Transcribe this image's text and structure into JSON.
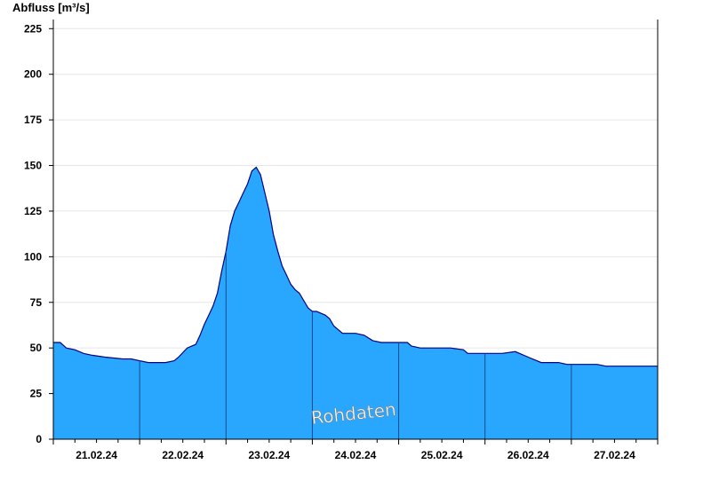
{
  "chart_data": {
    "type": "area",
    "ylabel": "Abfluss [m³/s]",
    "ylim": [
      0,
      230
    ],
    "yticks": [
      0,
      25,
      50,
      75,
      100,
      125,
      150,
      175,
      200,
      225
    ],
    "xlabels": [
      "21.02.24",
      "22.02.24",
      "23.02.24",
      "24.02.24",
      "25.02.24",
      "26.02.24",
      "27.02.24"
    ],
    "xlim_days": [
      0,
      7
    ],
    "grid": true,
    "fill_color": "#29a7ff",
    "line_color": "#000080",
    "watermark": "Rohdaten",
    "series": [
      {
        "x": [
          0.0,
          0.08,
          0.15,
          0.25,
          0.35,
          0.45,
          0.6,
          0.8,
          0.9,
          1.0,
          1.1,
          1.2,
          1.3,
          1.4,
          1.45,
          1.55,
          1.65,
          1.7,
          1.75,
          1.8,
          1.85,
          1.9,
          1.95,
          2.0,
          2.05,
          2.1,
          2.15,
          2.2,
          2.25,
          2.3,
          2.35,
          2.4,
          2.45,
          2.5,
          2.55,
          2.6,
          2.65,
          2.7,
          2.75,
          2.8,
          2.85,
          2.9,
          2.95,
          3.0,
          3.05,
          3.1,
          3.15,
          3.2,
          3.25,
          3.3,
          3.35,
          3.4,
          3.5,
          3.6,
          3.7,
          3.8,
          3.9,
          4.0,
          4.1,
          4.15,
          4.25,
          4.4,
          4.6,
          4.75,
          4.8,
          4.9,
          5.0,
          5.1,
          5.2,
          5.35,
          5.4,
          5.5,
          5.65,
          5.75,
          5.85,
          5.95,
          6.0,
          6.3,
          6.4,
          6.6,
          6.8,
          7.0
        ],
        "y": [
          53,
          53,
          50,
          49,
          47,
          46,
          45,
          44,
          44,
          43,
          42,
          42,
          42,
          43,
          45,
          50,
          52,
          57,
          63,
          68,
          73,
          80,
          92,
          103,
          117,
          125,
          130,
          135,
          140,
          147,
          149,
          145,
          135,
          125,
          112,
          103,
          95,
          90,
          85,
          82,
          80,
          76,
          72,
          70,
          70,
          69,
          68,
          66,
          62,
          60,
          58,
          58,
          58,
          57,
          54,
          53,
          53,
          53,
          53,
          51,
          50,
          50,
          50,
          49,
          47,
          47,
          47,
          47,
          47,
          48,
          47,
          45,
          42,
          42,
          42,
          41,
          41,
          41,
          40,
          40,
          40,
          40
        ]
      }
    ]
  }
}
